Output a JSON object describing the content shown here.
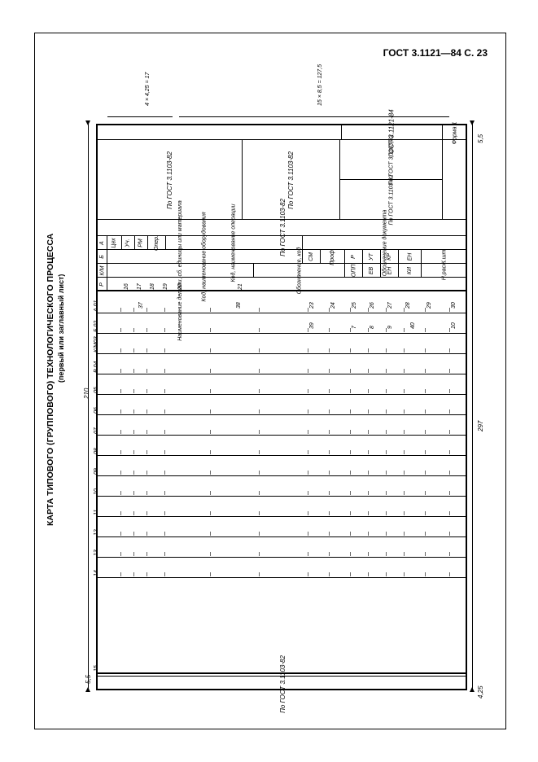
{
  "header_ref": "ГОСТ 3.1121—84 С. 23",
  "title_main": "КАРТА ТИПОВОГО (ГРУППОВОГО) ТЕХНОЛОГИЧЕСКОГО ПРОЦЕССА",
  "title_sub": "(первый или заглавный лист)",
  "gost_top_short": "ГОСТ 3.1121-84",
  "form_label": "Форма 1",
  "gost_ref": "По ГОСТ 3.1103-82",
  "dims": {
    "d210": "210",
    "d297": "297",
    "d55": "5,5",
    "d425": "4,25",
    "d4x425": "4 × 4,25 = 17",
    "d15x85": "15 × 8,5 = 127,5"
  },
  "head_cells": {
    "A": "А",
    "B": "Б",
    "KM": "К/М",
    "P": "Р",
    "cex": "Цех",
    "uc": "Уч.",
    "rm": "РМ",
    "oper": "Опер.",
    "kod_naim_oper": "Код, наименование операции",
    "kod_oborud": "Код, наименование оборудования",
    "naim_detali": "Наименование детали, сб. единицы или материала",
    "obozn_dok": "Обозначение документа",
    "obozn_kod": "Обозначение, код",
    "sm": "СМ",
    "prof": "Проф.",
    "r": "Р",
    "ut": "УТ",
    "kr": "КР",
    "en": "ЕН",
    "kshm": "К.шт",
    "opp": "ОПП",
    "ev": "ЕВ",
    "ki": "КИ",
    "nrasx": "Н.расх."
  },
  "row_labels": [
    "А 01",
    "Б 02",
    "К/М03",
    "Р 04",
    "05",
    "06",
    "07",
    "08",
    "09",
    "10",
    "11",
    "12",
    "13",
    "14",
    "15"
  ],
  "col_markers_r2": [
    "16",
    "17",
    "18",
    "19",
    "20",
    "21"
  ],
  "col_markers_r3": [
    "37",
    "38",
    "23",
    "24",
    "25",
    "26",
    "27",
    "28",
    "29",
    "30"
  ],
  "col_markers_r4": [
    "39",
    "7",
    "8",
    "9",
    "40",
    "10"
  ],
  "footer_text": "По ГОСТ 3.1103-82",
  "colors": {
    "line": "#000000",
    "bg": "#ffffff"
  }
}
